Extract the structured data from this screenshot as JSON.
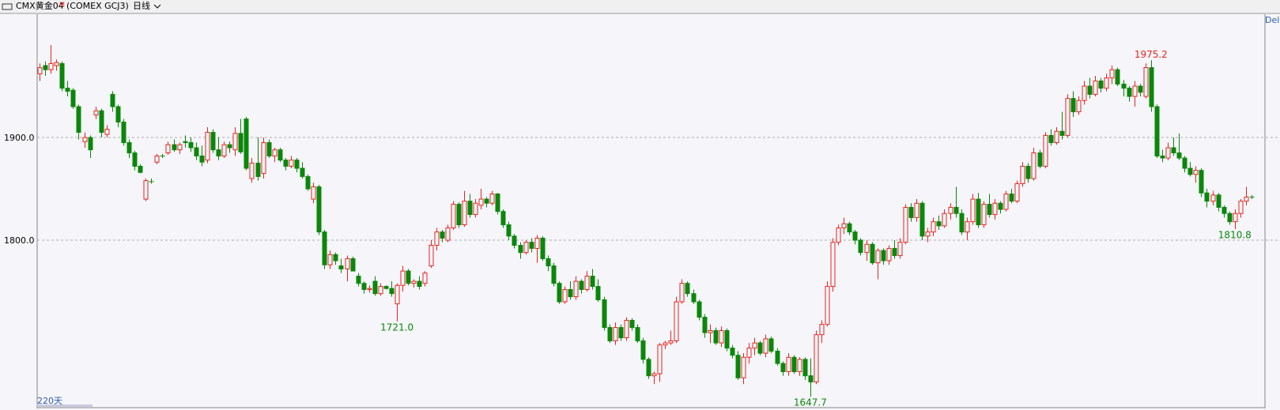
{
  "header": {
    "symbol": "CMX黄金04",
    "badge": "M",
    "code": "(COMEX GCJ3)",
    "period": "日线",
    "right": "Del"
  },
  "chart_data": {
    "type": "candlestick",
    "up_color": "#e8231f",
    "down_color": "#0a870a",
    "grid": true,
    "ylim": [
      1637,
      2020
    ],
    "yticks": [
      {
        "value": 1800,
        "label": "1800.0"
      },
      {
        "value": 1900,
        "label": "1900.0"
      }
    ],
    "range_label": "220天",
    "annotations": [
      {
        "value": 1975.2,
        "label": "1975.2",
        "color": "#e8231f"
      },
      {
        "value": 1721.0,
        "label": "1721.0",
        "color": "#0a870a"
      },
      {
        "value": 1647.7,
        "label": "1647.7",
        "color": "#0a870a"
      },
      {
        "value": 1810.8,
        "label": "1810.8",
        "color": "#0a870a"
      }
    ],
    "ohlc": [
      [
        1962,
        1972,
        1955,
        1968
      ],
      [
        1970,
        1974,
        1960,
        1966
      ],
      [
        1966,
        1990,
        1962,
        1972
      ],
      [
        1970,
        1976,
        1965,
        1973
      ],
      [
        1972,
        1974,
        1945,
        1948
      ],
      [
        1948,
        1955,
        1940,
        1945
      ],
      [
        1946,
        1948,
        1928,
        1930
      ],
      [
        1930,
        1932,
        1898,
        1905
      ],
      [
        1896,
        1905,
        1890,
        1900
      ],
      [
        1900,
        1902,
        1880,
        1888
      ],
      [
        1922,
        1930,
        1918,
        1926
      ],
      [
        1926,
        1928,
        1900,
        1905
      ],
      [
        1903,
        1912,
        1900,
        1908
      ],
      [
        1942,
        1945,
        1925,
        1930
      ],
      [
        1930,
        1932,
        1910,
        1915
      ],
      [
        1915,
        1918,
        1892,
        1895
      ],
      [
        1895,
        1898,
        1880,
        1885
      ],
      [
        1885,
        1887,
        1868,
        1872
      ],
      [
        1872,
        1874,
        1865,
        1866
      ],
      [
        1840,
        1860,
        1838,
        1858
      ],
      [
        1857,
        1860,
        1855,
        1857
      ],
      [
        1876,
        1884,
        1874,
        1882
      ],
      [
        1882,
        1884,
        1880,
        1882
      ],
      [
        1885,
        1896,
        1883,
        1893
      ],
      [
        1893,
        1898,
        1886,
        1888
      ],
      [
        1888,
        1895,
        1884,
        1893
      ],
      [
        1896,
        1902,
        1890,
        1895
      ],
      [
        1895,
        1900,
        1886,
        1890
      ],
      [
        1890,
        1895,
        1878,
        1882
      ],
      [
        1882,
        1892,
        1872,
        1876
      ],
      [
        1878,
        1910,
        1875,
        1905
      ],
      [
        1905,
        1908,
        1885,
        1888
      ],
      [
        1888,
        1900,
        1878,
        1882
      ],
      [
        1882,
        1896,
        1880,
        1893
      ],
      [
        1893,
        1896,
        1885,
        1890
      ],
      [
        1888,
        1910,
        1882,
        1904
      ],
      [
        1904,
        1918,
        1884,
        1886
      ],
      [
        1918,
        1920,
        1868,
        1870
      ],
      [
        1860,
        1880,
        1856,
        1875
      ],
      [
        1875,
        1900,
        1858,
        1862
      ],
      [
        1865,
        1900,
        1860,
        1895
      ],
      [
        1895,
        1898,
        1880,
        1882
      ],
      [
        1882,
        1890,
        1876,
        1888
      ],
      [
        1888,
        1890,
        1876,
        1878
      ],
      [
        1878,
        1880,
        1868,
        1872
      ],
      [
        1872,
        1882,
        1870,
        1878
      ],
      [
        1878,
        1880,
        1866,
        1870
      ],
      [
        1870,
        1876,
        1860,
        1862
      ],
      [
        1862,
        1864,
        1848,
        1850
      ],
      [
        1840,
        1856,
        1836,
        1852
      ],
      [
        1852,
        1854,
        1805,
        1808
      ],
      [
        1808,
        1810,
        1772,
        1776
      ],
      [
        1776,
        1790,
        1772,
        1786
      ],
      [
        1786,
        1788,
        1776,
        1780
      ],
      [
        1775,
        1782,
        1768,
        1772
      ],
      [
        1772,
        1785,
        1760,
        1782
      ],
      [
        1782,
        1784,
        1770,
        1770
      ],
      [
        1765,
        1768,
        1755,
        1758
      ],
      [
        1758,
        1760,
        1748,
        1752
      ],
      [
        1752,
        1756,
        1749,
        1753
      ],
      [
        1760,
        1765,
        1746,
        1748
      ],
      [
        1748,
        1758,
        1746,
        1755
      ],
      [
        1755,
        1756,
        1752,
        1753
      ],
      [
        1753,
        1760,
        1745,
        1748
      ],
      [
        1738,
        1758,
        1721.0,
        1756
      ],
      [
        1756,
        1775,
        1750,
        1770
      ],
      [
        1770,
        1772,
        1756,
        1758
      ],
      [
        1758,
        1762,
        1754,
        1760
      ],
      [
        1760,
        1765,
        1752,
        1755
      ],
      [
        1758,
        1770,
        1755,
        1768
      ],
      [
        1775,
        1800,
        1773,
        1795
      ],
      [
        1795,
        1812,
        1790,
        1808
      ],
      [
        1808,
        1810,
        1798,
        1802
      ],
      [
        1800,
        1815,
        1798,
        1812
      ],
      [
        1812,
        1838,
        1810,
        1835
      ],
      [
        1835,
        1837,
        1812,
        1815
      ],
      [
        1815,
        1848,
        1813,
        1838
      ],
      [
        1838,
        1845,
        1822,
        1825
      ],
      [
        1825,
        1840,
        1822,
        1836
      ],
      [
        1834,
        1850,
        1830,
        1840
      ],
      [
        1840,
        1842,
        1832,
        1836
      ],
      [
        1836,
        1848,
        1834,
        1845
      ],
      [
        1845,
        1846,
        1825,
        1828
      ],
      [
        1828,
        1830,
        1812,
        1815
      ],
      [
        1815,
        1818,
        1800,
        1804
      ],
      [
        1804,
        1806,
        1792,
        1795
      ],
      [
        1795,
        1798,
        1782,
        1788
      ],
      [
        1788,
        1800,
        1786,
        1798
      ],
      [
        1798,
        1802,
        1788,
        1792
      ],
      [
        1792,
        1805,
        1778,
        1802
      ],
      [
        1802,
        1804,
        1780,
        1782
      ],
      [
        1782,
        1785,
        1770,
        1775
      ],
      [
        1775,
        1778,
        1755,
        1758
      ],
      [
        1758,
        1760,
        1738,
        1740
      ],
      [
        1740,
        1755,
        1738,
        1752
      ],
      [
        1752,
        1760,
        1742,
        1745
      ],
      [
        1745,
        1765,
        1742,
        1760
      ],
      [
        1760,
        1762,
        1748,
        1752
      ],
      [
        1752,
        1770,
        1750,
        1765
      ],
      [
        1765,
        1772,
        1752,
        1755
      ],
      [
        1755,
        1762,
        1740,
        1742
      ],
      [
        1742,
        1745,
        1712,
        1715
      ],
      [
        1715,
        1718,
        1700,
        1702
      ],
      [
        1702,
        1720,
        1698,
        1715
      ],
      [
        1715,
        1718,
        1702,
        1705
      ],
      [
        1705,
        1725,
        1702,
        1722
      ],
      [
        1722,
        1724,
        1712,
        1715
      ],
      [
        1715,
        1718,
        1700,
        1702
      ],
      [
        1702,
        1705,
        1680,
        1684
      ],
      [
        1684,
        1686,
        1665,
        1668
      ],
      [
        1668,
        1672,
        1660,
        1670
      ],
      [
        1670,
        1700,
        1662,
        1698
      ],
      [
        1698,
        1702,
        1694,
        1700
      ],
      [
        1700,
        1712,
        1698,
        1702
      ],
      [
        1702,
        1745,
        1700,
        1740
      ],
      [
        1740,
        1762,
        1738,
        1758
      ],
      [
        1758,
        1760,
        1745,
        1748
      ],
      [
        1748,
        1752,
        1738,
        1740
      ],
      [
        1740,
        1742,
        1722,
        1725
      ],
      [
        1725,
        1728,
        1705,
        1710
      ],
      [
        1710,
        1718,
        1700,
        1712
      ],
      [
        1712,
        1715,
        1698,
        1700
      ],
      [
        1700,
        1716,
        1696,
        1712
      ],
      [
        1712,
        1714,
        1692,
        1695
      ],
      [
        1695,
        1698,
        1685,
        1688
      ],
      [
        1688,
        1692,
        1664,
        1666
      ],
      [
        1666,
        1690,
        1660,
        1686
      ],
      [
        1686,
        1700,
        1680,
        1695
      ],
      [
        1695,
        1705,
        1688,
        1700
      ],
      [
        1700,
        1702,
        1688,
        1690
      ],
      [
        1690,
        1708,
        1686,
        1704
      ],
      [
        1704,
        1706,
        1690,
        1692
      ],
      [
        1692,
        1695,
        1678,
        1680
      ],
      [
        1680,
        1682,
        1668,
        1672
      ],
      [
        1672,
        1690,
        1668,
        1686
      ],
      [
        1686,
        1688,
        1670,
        1672
      ],
      [
        1672,
        1686,
        1668,
        1684
      ],
      [
        1684,
        1686,
        1664,
        1668
      ],
      [
        1668,
        1685,
        1647.7,
        1662
      ],
      [
        1662,
        1712,
        1660,
        1708
      ],
      [
        1708,
        1722,
        1700,
        1718
      ],
      [
        1718,
        1760,
        1716,
        1755
      ],
      [
        1755,
        1802,
        1750,
        1798
      ],
      [
        1798,
        1815,
        1795,
        1812
      ],
      [
        1812,
        1822,
        1806,
        1816
      ],
      [
        1816,
        1818,
        1805,
        1808
      ],
      [
        1808,
        1810,
        1796,
        1800
      ],
      [
        1800,
        1802,
        1785,
        1788
      ],
      [
        1788,
        1800,
        1780,
        1796
      ],
      [
        1796,
        1798,
        1776,
        1778
      ],
      [
        1778,
        1792,
        1762,
        1790
      ],
      [
        1790,
        1792,
        1776,
        1780
      ],
      [
        1780,
        1795,
        1776,
        1792
      ],
      [
        1792,
        1800,
        1782,
        1785
      ],
      [
        1785,
        1802,
        1782,
        1798
      ],
      [
        1798,
        1835,
        1796,
        1832
      ],
      [
        1832,
        1836,
        1818,
        1822
      ],
      [
        1822,
        1840,
        1818,
        1836
      ],
      [
        1836,
        1838,
        1800,
        1804
      ],
      [
        1804,
        1812,
        1798,
        1808
      ],
      [
        1808,
        1822,
        1804,
        1818
      ],
      [
        1818,
        1824,
        1810,
        1814
      ],
      [
        1814,
        1830,
        1812,
        1826
      ],
      [
        1826,
        1836,
        1820,
        1832
      ],
      [
        1832,
        1852,
        1822,
        1826
      ],
      [
        1826,
        1830,
        1805,
        1808
      ],
      [
        1808,
        1822,
        1800,
        1818
      ],
      [
        1818,
        1845,
        1815,
        1840
      ],
      [
        1840,
        1846,
        1812,
        1815
      ],
      [
        1815,
        1838,
        1812,
        1835
      ],
      [
        1835,
        1845,
        1822,
        1825
      ],
      [
        1825,
        1840,
        1820,
        1836
      ],
      [
        1836,
        1838,
        1826,
        1830
      ],
      [
        1830,
        1848,
        1828,
        1845
      ],
      [
        1845,
        1850,
        1836,
        1838
      ],
      [
        1838,
        1858,
        1836,
        1855
      ],
      [
        1855,
        1876,
        1852,
        1872
      ],
      [
        1872,
        1875,
        1856,
        1860
      ],
      [
        1860,
        1890,
        1858,
        1885
      ],
      [
        1885,
        1888,
        1870,
        1872
      ],
      [
        1872,
        1905,
        1870,
        1902
      ],
      [
        1902,
        1908,
        1892,
        1895
      ],
      [
        1895,
        1910,
        1893,
        1906
      ],
      [
        1906,
        1925,
        1898,
        1902
      ],
      [
        1902,
        1942,
        1900,
        1938
      ],
      [
        1938,
        1945,
        1920,
        1925
      ],
      [
        1925,
        1940,
        1922,
        1936
      ],
      [
        1936,
        1955,
        1932,
        1950
      ],
      [
        1950,
        1958,
        1938,
        1942
      ],
      [
        1942,
        1960,
        1940,
        1955
      ],
      [
        1955,
        1958,
        1944,
        1948
      ],
      [
        1948,
        1962,
        1945,
        1958
      ],
      [
        1958,
        1970,
        1952,
        1966
      ],
      [
        1966,
        1968,
        1950,
        1952
      ],
      [
        1952,
        1956,
        1940,
        1948
      ],
      [
        1948,
        1950,
        1935,
        1940
      ],
      [
        1940,
        1955,
        1930,
        1950
      ],
      [
        1950,
        1952,
        1940,
        1944
      ],
      [
        1940,
        1972,
        1938,
        1968
      ],
      [
        1968,
        1975.2,
        1925,
        1930
      ],
      [
        1930,
        1932,
        1880,
        1882
      ],
      [
        1882,
        1888,
        1876,
        1880
      ],
      [
        1880,
        1895,
        1878,
        1890
      ],
      [
        1890,
        1900,
        1882,
        1885
      ],
      [
        1885,
        1904,
        1878,
        1880
      ],
      [
        1880,
        1882,
        1866,
        1870
      ],
      [
        1870,
        1876,
        1862,
        1864
      ],
      [
        1864,
        1872,
        1856,
        1868
      ],
      [
        1868,
        1870,
        1842,
        1846
      ],
      [
        1846,
        1850,
        1832,
        1838
      ],
      [
        1838,
        1848,
        1834,
        1844
      ],
      [
        1844,
        1846,
        1828,
        1832
      ],
      [
        1832,
        1834,
        1822,
        1826
      ],
      [
        1826,
        1828,
        1815,
        1818
      ],
      [
        1818,
        1830,
        1810.8,
        1826
      ],
      [
        1826,
        1840,
        1822,
        1838
      ],
      [
        1838,
        1852,
        1834,
        1842
      ],
      [
        1842,
        1844,
        1840,
        1842
      ]
    ]
  }
}
